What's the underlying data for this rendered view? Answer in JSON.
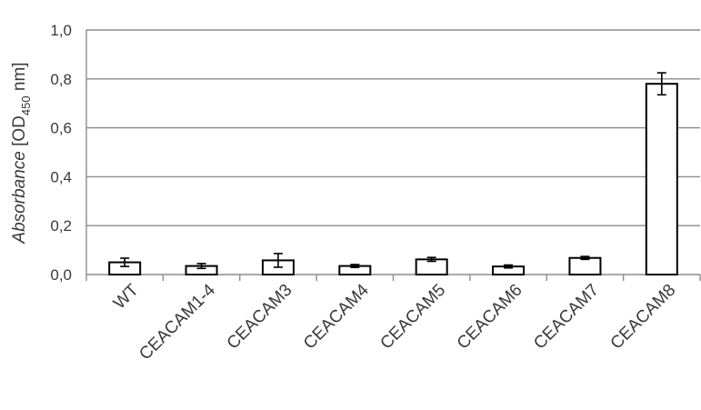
{
  "chart_data": {
    "type": "bar",
    "categories": [
      "WT",
      "CEACAM1-4",
      "CEACAM3",
      "CEACAM4",
      "CEACAM5",
      "CEACAM6",
      "CEACAM7",
      "CEACAM8"
    ],
    "values": [
      0.05,
      0.035,
      0.058,
      0.035,
      0.062,
      0.033,
      0.068,
      0.78
    ],
    "errors": [
      0.017,
      0.01,
      0.028,
      0.006,
      0.008,
      0.006,
      0.006,
      0.045
    ],
    "ylabel": {
      "prefix": "Absorbance",
      "bracket_open": " [OD",
      "subscript": "450",
      "suffix": " nm]"
    },
    "ylim": [
      0,
      1.0
    ],
    "yticks": [
      "0,0",
      "0,2",
      "0,4",
      "0,6",
      "0,8",
      "1,0"
    ],
    "grid": true,
    "bar_fill": "#ffffff",
    "bar_stroke": "#000000",
    "grid_color": "#8c8c8c"
  }
}
